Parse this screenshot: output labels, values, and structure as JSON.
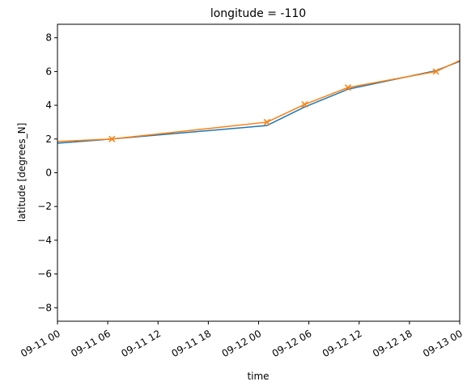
{
  "chart_data": {
    "type": "line",
    "title": "longitude = -110",
    "xlabel": "time",
    "ylabel": "latitude [degrees_N]",
    "xlim": [
      "2023-09-11 00:00",
      "2023-09-13 00:00"
    ],
    "ylim": [
      -8.8,
      8.8
    ],
    "x_tick_labels": [
      "09-11 00",
      "09-11 06",
      "09-11 12",
      "09-11 18",
      "09-12 00",
      "09-12 06",
      "09-12 12",
      "09-12 18",
      "09-13 00"
    ],
    "y_ticks": [
      -8,
      -6,
      -4,
      -2,
      0,
      2,
      4,
      6,
      8
    ],
    "grid": false,
    "series": [
      {
        "color": "#1f77b4",
        "marker": "none",
        "x": [
          "2023-09-11 00:00",
          "2023-09-11 06:30",
          "2023-09-12 01:00",
          "2023-09-12 05:30",
          "2023-09-12 10:40",
          "2023-09-12 21:10",
          "2023-09-13 00:00"
        ],
        "y": [
          1.75,
          2.0,
          2.8,
          3.9,
          4.95,
          6.05,
          6.6
        ]
      },
      {
        "color": "#ff7f0e",
        "marker": "x",
        "x": [
          "2023-09-11 00:00",
          "2023-09-11 06:30",
          "2023-09-12 01:00",
          "2023-09-12 05:30",
          "2023-09-12 10:40",
          "2023-09-12 21:10",
          "2023-09-13 00:00"
        ],
        "y": [
          1.85,
          2.0,
          3.0,
          4.05,
          5.05,
          6.0,
          6.65
        ],
        "marked": [
          false,
          true,
          true,
          true,
          true,
          true,
          false
        ]
      }
    ]
  }
}
